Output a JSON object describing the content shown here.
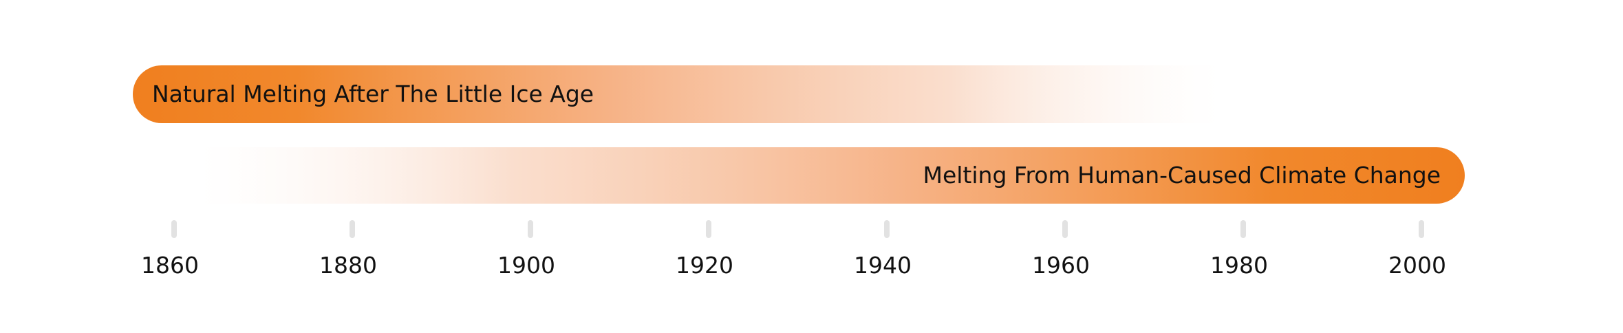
{
  "colors": {
    "accent": "#f07f1f",
    "tick": "#e2e2e2",
    "text": "#111111"
  },
  "periods": [
    {
      "label": "Natural Melting After The Little Ice Age",
      "start": 1855,
      "end": 1975,
      "solid_end": "start"
    },
    {
      "label": "Melting From Human-Caused Climate Change",
      "start": 1863,
      "end": 2005,
      "solid_end": "end"
    }
  ],
  "axis": {
    "ticks": [
      "1860",
      "1880",
      "1900",
      "1920",
      "1940",
      "1960",
      "1980",
      "2000"
    ]
  }
}
